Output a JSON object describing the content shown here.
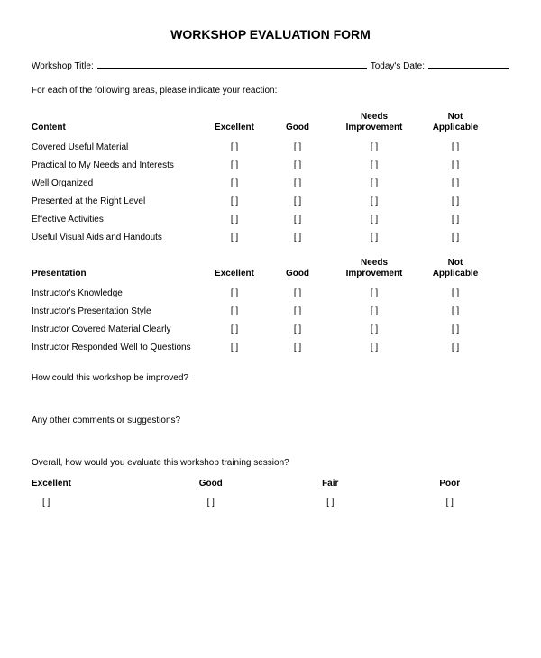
{
  "title": "WORKSHOP EVALUATION FORM",
  "workshop_title_label": "Workshop Title:",
  "date_label": "Today's Date:",
  "instruction": "For each of the following areas, please indicate your reaction:",
  "checkbox_glyph": "[ ]",
  "columns": [
    "Excellent",
    "Good",
    "Needs\nImprovement",
    "Not\nApplicable"
  ],
  "sections": [
    {
      "heading": "Content",
      "rows": [
        "Covered Useful Material",
        "Practical to My Needs and Interests",
        "Well Organized",
        "Presented at the Right Level",
        "Effective Activities",
        "Useful Visual Aids and Handouts"
      ]
    },
    {
      "heading": "Presentation",
      "rows": [
        "Instructor's Knowledge",
        "Instructor's Presentation Style",
        "Instructor Covered Material Clearly",
        "Instructor Responded Well to Questions"
      ]
    }
  ],
  "q1": "How could this workshop be improved?",
  "q2": "Any other comments or suggestions?",
  "q3": "Overall, how would you evaluate this workshop training session?",
  "overall_columns": [
    "Excellent",
    "Good",
    "Fair",
    "Poor"
  ],
  "styling": {
    "background_color": "#ffffff",
    "text_color": "#000000",
    "font_family": "Arial, sans-serif",
    "title_fontsize": 14,
    "body_fontsize": 10,
    "checkbox_style": "bracket"
  }
}
